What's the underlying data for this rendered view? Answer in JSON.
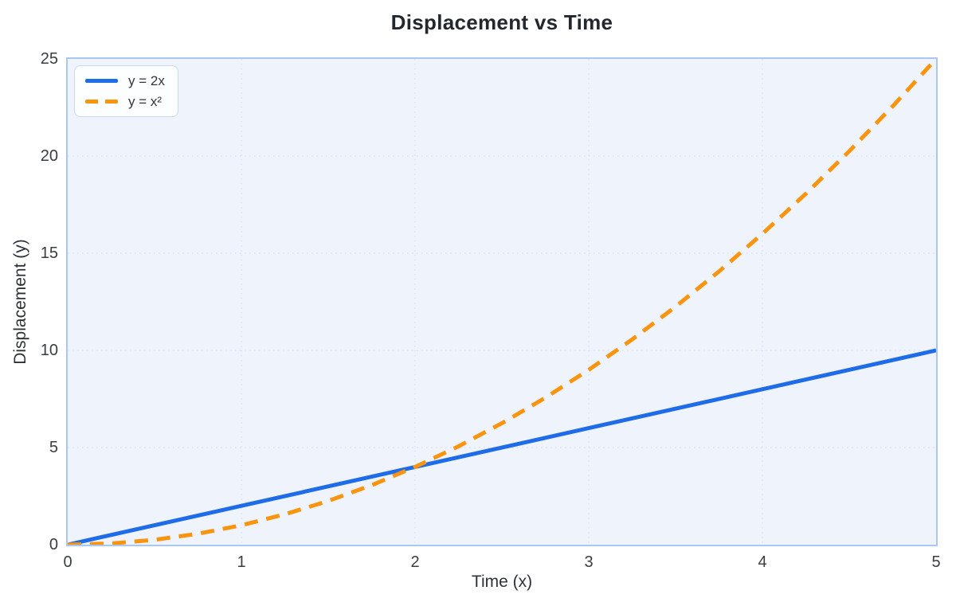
{
  "title": "Displacement vs Time",
  "colors": {
    "plot_background": "#eff3fb",
    "plot_border": "#a9c7f1",
    "gridline": "#dbe3f4",
    "series_blue": "#1f6ce8",
    "series_orange": "#f9940f",
    "legend_border": "#c8daf6",
    "text": "#2e3136"
  },
  "chart_data": {
    "type": "line",
    "title": "Displacement vs Time",
    "xlabel": "Time (x)",
    "ylabel": "Displacement (y)",
    "xlim": [
      0,
      5
    ],
    "ylim": [
      0,
      25
    ],
    "x_ticks": [
      0,
      1,
      2,
      3,
      4,
      5
    ],
    "y_ticks": [
      0,
      5,
      10,
      15,
      20,
      25
    ],
    "grid": true,
    "legend_position": "upper left",
    "series": [
      {
        "name": "y = 2x",
        "color": "#1f6ce8",
        "style": "solid",
        "x": [
          0,
          5
        ],
        "y": [
          0,
          10
        ]
      },
      {
        "name": "y = x²",
        "color": "#f9940f",
        "style": "dashed",
        "x": [
          0,
          0.25,
          0.5,
          0.75,
          1,
          1.25,
          1.5,
          1.75,
          2,
          2.25,
          2.5,
          2.75,
          3,
          3.25,
          3.5,
          3.75,
          4,
          4.25,
          4.5,
          4.75,
          5
        ],
        "y": [
          0,
          0.0625,
          0.25,
          0.5625,
          1,
          1.5625,
          2.25,
          3.0625,
          4,
          5.0625,
          6.25,
          7.5625,
          9,
          10.5625,
          12.25,
          14.0625,
          16,
          18.0625,
          20.25,
          22.5625,
          25
        ]
      }
    ]
  }
}
